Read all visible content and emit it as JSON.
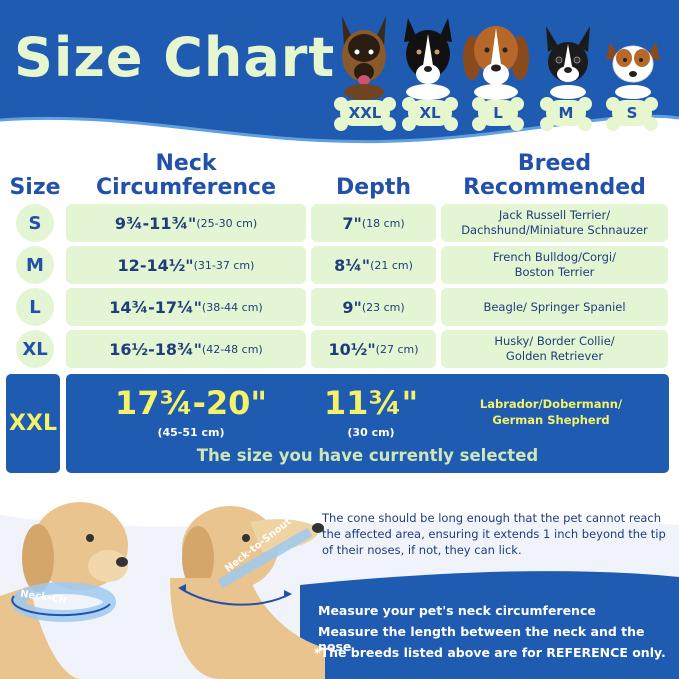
{
  "title": "Size Chart",
  "header_dogs": [
    {
      "size": "XXL",
      "icon": "german-shepherd-icon"
    },
    {
      "size": "XL",
      "icon": "border-collie-icon"
    },
    {
      "size": "L",
      "icon": "beagle-icon"
    },
    {
      "size": "M",
      "icon": "boston-terrier-icon"
    },
    {
      "size": "S",
      "icon": "jack-russell-icon"
    }
  ],
  "columns": {
    "size": "Size",
    "neck_line1": "Neck",
    "neck_line2": "Circumference",
    "depth": "Depth",
    "breed_line1": "Breed",
    "breed_line2": "Recommended"
  },
  "rows": [
    {
      "size": "S",
      "neck": "9¾-11¾\"",
      "neck_cm": "(25-30 cm)",
      "depth": "7\"",
      "depth_cm": "(18 cm)",
      "breed_line1": "Jack Russell Terrier/",
      "breed_line2": "Dachshund/Miniature Schnauzer"
    },
    {
      "size": "M",
      "neck": "12-14½\"",
      "neck_cm": "(31-37 cm)",
      "depth": "8¼\"",
      "depth_cm": "(21 cm)",
      "breed_line1": "French Bulldog/Corgi/",
      "breed_line2": "Boston Terrier"
    },
    {
      "size": "L",
      "neck": "14¾-17¼\"",
      "neck_cm": "(38-44 cm)",
      "depth": "9\"",
      "depth_cm": "(23 cm)",
      "breed_line1": "Beagle/ Springer Spaniel",
      "breed_line2": ""
    },
    {
      "size": "XL",
      "neck": "16½-18¾\"",
      "neck_cm": "(42-48 cm)",
      "depth": "10½\"",
      "depth_cm": "(27 cm)",
      "breed_line1": "Husky/ Border Collie/",
      "breed_line2": "Golden Retriever"
    }
  ],
  "selected": {
    "size": "XXL",
    "neck": "17¾-20\"",
    "neck_cm": "(45-51 cm)",
    "depth": "11¾\"",
    "depth_cm": "(30 cm)",
    "breed_line1": "Labrador/Dobermann/",
    "breed_line2": "German Shepherd",
    "note": "The size you have currently selected"
  },
  "cone_note": "The cone should be long enough that the pet cannot reach the affected area, ensuring it extends 1 inch beyond the tip of their noses, if not, they can lick.",
  "labels": {
    "neck_cir": "Neck-Cir",
    "neck_to_snout": "Neck-to-Snout"
  },
  "instructions": [
    "Measure your pet's neck circumference",
    "Measure the length between the neck and the nose",
    "*The breeds listed above are for REFERENCE only."
  ],
  "colors": {
    "brand_blue": "#1f5bb0",
    "cell_green": "#e3f5d3",
    "highlight_yellow": "#f4f26a",
    "title_green": "#e6f6cf"
  }
}
